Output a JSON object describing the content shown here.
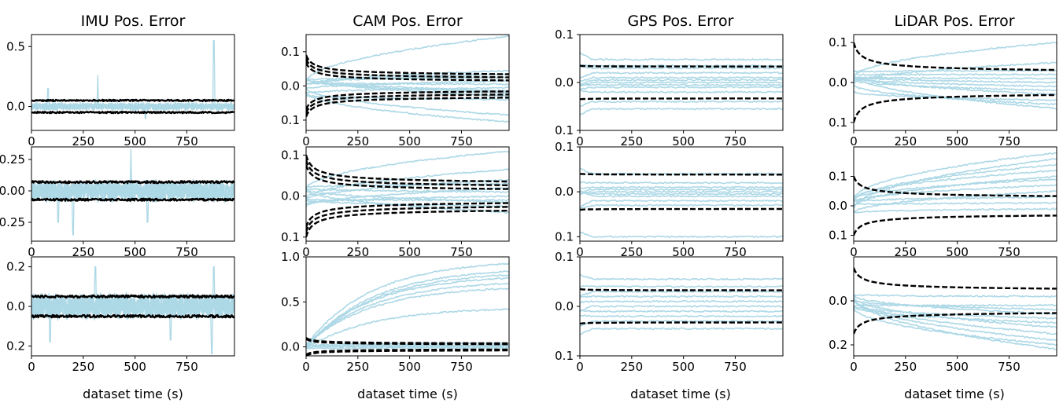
{
  "figure": {
    "titles": [
      "IMU Pos. Error",
      "CAM Pos. Error",
      "GPS Pos. Error",
      "LiDAR Pos. Error"
    ],
    "xlabel": "dataset time (s)"
  },
  "colors": {
    "trace": "#add8e6",
    "bound": "#000000"
  },
  "chart_data": [
    {
      "type": "line",
      "title": "IMU Pos. Error",
      "ylim": [
        -0.2,
        0.6
      ],
      "yticks": [
        0.0,
        0.5
      ],
      "ytick_labels": [
        "0.0",
        "0.5"
      ],
      "xlim": [
        0,
        980
      ],
      "xticks": [
        0,
        250,
        500,
        750
      ],
      "xtick_labels": [
        "0",
        "250",
        "500",
        "750"
      ],
      "traces": "noise",
      "trace_amp": 0.03,
      "spikes": [
        [
          80,
          0.15
        ],
        [
          320,
          0.26
        ],
        [
          880,
          0.55
        ],
        [
          550,
          -0.1
        ]
      ],
      "bound": "solid",
      "bound_values": [
        0.05,
        0.05
      ],
      "xlabel": "",
      "grid": false
    },
    {
      "type": "line",
      "title": "CAM Pos. Error",
      "ylim": [
        -0.13,
        0.15
      ],
      "yticks": [
        0.1,
        0.0,
        -0.1
      ],
      "ytick_labels": [
        "0.1",
        "0.0",
        "0.1"
      ],
      "xlim": [
        0,
        980
      ],
      "xticks": [
        0,
        250,
        500,
        750
      ],
      "xtick_labels": [
        "0",
        "250",
        "500",
        "750"
      ],
      "traces": "drift",
      "trace_finals": [
        0.145,
        0.045,
        0.035,
        0.025,
        0.015,
        0.005,
        -0.005,
        -0.015,
        -0.02,
        -0.03,
        -0.04,
        -0.085,
        -0.105
      ],
      "bound": "dashed",
      "bound_values": [
        0.09,
        0.025
      ],
      "bound_count": 3,
      "xlabel": "",
      "grid": false
    },
    {
      "type": "line",
      "title": "GPS Pos. Error",
      "ylim": [
        -0.1,
        0.1
      ],
      "yticks": [
        0.1,
        0.0,
        -0.1
      ],
      "ytick_labels": [
        "0.1",
        "0.0",
        "0.1"
      ],
      "xlim": [
        0,
        980
      ],
      "xticks": [
        0,
        250,
        500,
        750
      ],
      "xtick_labels": [
        "0",
        "250",
        "500",
        "750"
      ],
      "traces": "flat",
      "trace_finals": [
        0.048,
        0.035,
        0.03,
        0.02,
        0.01,
        0.005,
        0.0,
        -0.005,
        -0.01,
        -0.02,
        -0.04,
        -0.055
      ],
      "bound": "dashed",
      "bound_values": [
        0.035,
        0.033
      ],
      "bound_count": 1,
      "xlabel": "",
      "grid": false
    },
    {
      "type": "line",
      "title": "LiDAR Pos. Error",
      "ylim": [
        -0.12,
        0.12
      ],
      "yticks": [
        0.1,
        0.0,
        -0.1
      ],
      "ytick_labels": [
        "0.1",
        "0.0",
        "0.1"
      ],
      "xlim": [
        0,
        980
      ],
      "xticks": [
        0,
        250,
        500,
        750
      ],
      "xtick_labels": [
        "0",
        "250",
        "500",
        "750"
      ],
      "traces": "drift",
      "trace_finals": [
        0.1,
        0.05,
        0.03,
        0.02,
        0.01,
        0.0,
        -0.01,
        -0.02,
        -0.03,
        -0.045,
        -0.055,
        -0.065
      ],
      "bound": "dashed",
      "bound_values": [
        0.1,
        0.02
      ],
      "bound_count": 1,
      "xlabel": "",
      "grid": false
    },
    {
      "type": "line",
      "title": "",
      "ylim": [
        -0.4,
        0.35
      ],
      "yticks": [
        0.25,
        0.0,
        -0.25
      ],
      "ytick_labels": [
        "0.25",
        "0.00",
        "0.25"
      ],
      "xlim": [
        0,
        980
      ],
      "xticks": [
        0,
        250,
        500,
        750
      ],
      "xtick_labels": [
        "0",
        "250",
        "500",
        "750"
      ],
      "traces": "noise",
      "trace_amp": 0.08,
      "spikes": [
        [
          480,
          0.33
        ],
        [
          200,
          -0.35
        ],
        [
          130,
          -0.25
        ],
        [
          560,
          -0.25
        ]
      ],
      "bound": "solid",
      "bound_values": [
        0.07,
        0.07
      ],
      "xlabel": "",
      "grid": false
    },
    {
      "type": "line",
      "title": "",
      "ylim": [
        -0.11,
        0.12
      ],
      "yticks": [
        0.1,
        0.0,
        -0.1
      ],
      "ytick_labels": [
        "0.1",
        "0.0",
        "0.1"
      ],
      "xlim": [
        0,
        980
      ],
      "xticks": [
        0,
        250,
        500,
        750
      ],
      "xtick_labels": [
        "0",
        "250",
        "500",
        "750"
      ],
      "traces": "drift",
      "trace_finals": [
        0.11,
        0.065,
        0.04,
        0.03,
        0.02,
        0.01,
        0.0,
        -0.01,
        -0.015,
        -0.025,
        -0.04
      ],
      "bound": "dashed",
      "bound_values": [
        0.1,
        0.025
      ],
      "bound_count": 3,
      "xlabel": "",
      "grid": false
    },
    {
      "type": "line",
      "title": "",
      "ylim": [
        -0.11,
        0.1
      ],
      "yticks": [
        0.1,
        0.0,
        -0.1
      ],
      "ytick_labels": [
        "0.1",
        "0.0",
        "0.1"
      ],
      "xlim": [
        0,
        980
      ],
      "xticks": [
        0,
        250,
        500,
        750
      ],
      "xtick_labels": [
        "0",
        "250",
        "500",
        "750"
      ],
      "traces": "flat",
      "trace_finals": [
        0.04,
        0.02,
        0.01,
        0.005,
        0.0,
        -0.005,
        -0.01,
        -0.02,
        -0.03,
        -0.1
      ],
      "bound": "dashed",
      "bound_values": [
        0.04,
        0.038
      ],
      "bound_count": 1,
      "xlabel": "",
      "grid": false
    },
    {
      "type": "line",
      "title": "",
      "ylim": [
        -0.12,
        0.2
      ],
      "yticks": [
        0.1,
        0.0,
        -0.1
      ],
      "ytick_labels": [
        "0.1",
        "0.0",
        "0.1"
      ],
      "xlim": [
        0,
        980
      ],
      "xticks": [
        0,
        250,
        500,
        750
      ],
      "xtick_labels": [
        "0",
        "250",
        "500",
        "750"
      ],
      "traces": "drift",
      "trace_finals": [
        0.18,
        0.16,
        0.14,
        0.12,
        0.1,
        0.09,
        0.07,
        0.05,
        0.03,
        0.01,
        -0.01
      ],
      "bound": "dashed",
      "bound_values": [
        0.1,
        0.022
      ],
      "bound_count": 1,
      "xlabel": "",
      "grid": false
    },
    {
      "type": "line",
      "title": "",
      "ylim": [
        -0.25,
        0.25
      ],
      "yticks": [
        0.2,
        0.0,
        -0.2
      ],
      "ytick_labels": [
        "0.2",
        "0.0",
        "0.2"
      ],
      "xlim": [
        0,
        980
      ],
      "xticks": [
        0,
        250,
        500,
        750
      ],
      "xtick_labels": [
        "0",
        "250",
        "500",
        "750"
      ],
      "traces": "noise",
      "trace_amp": 0.06,
      "spikes": [
        [
          310,
          0.2
        ],
        [
          880,
          0.2
        ],
        [
          90,
          -0.18
        ],
        [
          670,
          -0.17
        ],
        [
          870,
          -0.24
        ]
      ],
      "bound": "solid",
      "bound_values": [
        0.05,
        0.05
      ],
      "xlabel": "dataset time (s)",
      "grid": false
    },
    {
      "type": "line",
      "title": "",
      "ylim": [
        -0.1,
        1.0
      ],
      "yticks": [
        1.0,
        0.5,
        0.0
      ],
      "ytick_labels": [
        "1.0",
        "0.5",
        "0.0"
      ],
      "xlim": [
        0,
        980
      ],
      "xticks": [
        0,
        250,
        500,
        750
      ],
      "xtick_labels": [
        "0",
        "250",
        "500",
        "750"
      ],
      "traces": "growth",
      "trace_finals": [
        0.97,
        0.88,
        0.84,
        0.8,
        0.74,
        0.68,
        0.44,
        0.04,
        0.02,
        0.01,
        0.0,
        -0.01
      ],
      "bound": "dashed",
      "bound_values": [
        0.1,
        0.03
      ],
      "bound_count": 2,
      "xlabel": "dataset time (s)",
      "grid": false
    },
    {
      "type": "line",
      "title": "",
      "ylim": [
        -0.1,
        0.1
      ],
      "yticks": [
        0.1,
        0.0,
        -0.1
      ],
      "ytick_labels": [
        "0.1",
        "0.0",
        "0.1"
      ],
      "xlim": [
        0,
        980
      ],
      "xticks": [
        0,
        250,
        500,
        750
      ],
      "xtick_labels": [
        "0",
        "250",
        "500",
        "750"
      ],
      "traces": "flat",
      "trace_finals": [
        0.055,
        0.04,
        0.03,
        0.02,
        0.01,
        0.0,
        -0.01,
        -0.02,
        -0.03,
        -0.045
      ],
      "bound": "dashed",
      "bound_values": [
        0.035,
        0.032
      ],
      "bound_count": 1,
      "xlabel": "dataset time (s)",
      "grid": false
    },
    {
      "type": "line",
      "title": "",
      "ylim": [
        -0.25,
        0.2
      ],
      "yticks": [
        0.0,
        -0.2
      ],
      "ytick_labels": [
        "0.0",
        "0.2"
      ],
      "xlim": [
        0,
        980
      ],
      "xticks": [
        0,
        250,
        500,
        750
      ],
      "xtick_labels": [
        "0",
        "250",
        "500",
        "750"
      ],
      "traces": "drift",
      "trace_finals": [
        0.02,
        -0.02,
        -0.04,
        -0.06,
        -0.08,
        -0.1,
        -0.12,
        -0.15,
        -0.18,
        -0.2,
        -0.22
      ],
      "bound": "dashed",
      "bound_values": [
        0.15,
        0.04
      ],
      "bound_count": 1,
      "xlabel": "dataset time (s)",
      "grid": false
    }
  ]
}
